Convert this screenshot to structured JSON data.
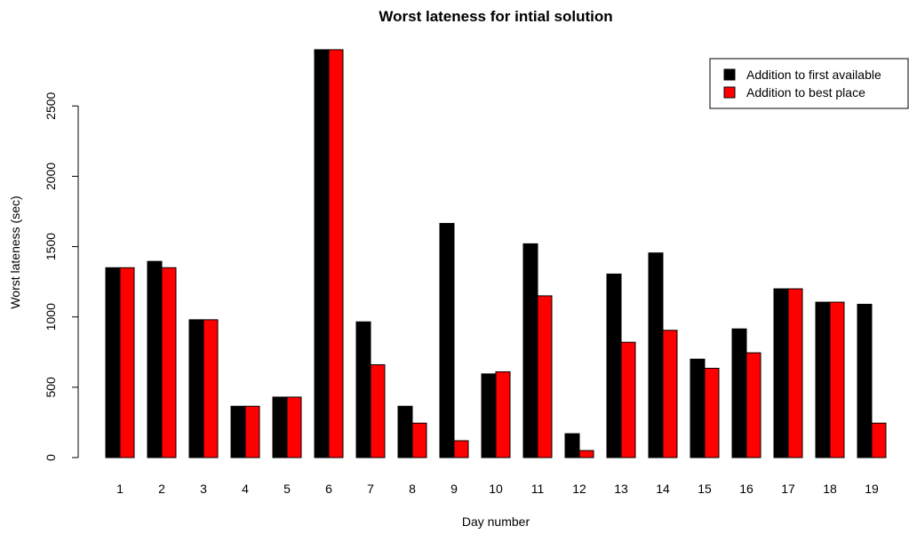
{
  "chart_data": {
    "type": "bar",
    "title": "Worst lateness for intial solution",
    "xlabel": "Day number",
    "ylabel": "Worst lateness (sec)",
    "ylim": [
      0,
      2900
    ],
    "yticks": [
      0,
      500,
      1000,
      1500,
      2000,
      2500
    ],
    "categories": [
      "1",
      "2",
      "3",
      "4",
      "5",
      "6",
      "7",
      "8",
      "9",
      "10",
      "11",
      "12",
      "13",
      "14",
      "15",
      "16",
      "17",
      "18",
      "19"
    ],
    "series": [
      {
        "name": "Addition to first available",
        "color": "#000000",
        "values": [
          1350,
          1395,
          980,
          365,
          430,
          2900,
          965,
          365,
          1665,
          595,
          1520,
          170,
          1305,
          1455,
          700,
          915,
          1200,
          1105,
          1090
        ]
      },
      {
        "name": "Addition to best place",
        "color": "#ff0000",
        "values": [
          1350,
          1350,
          980,
          365,
          430,
          2900,
          660,
          245,
          120,
          610,
          1150,
          50,
          820,
          905,
          635,
          745,
          1200,
          1105,
          245
        ]
      }
    ],
    "legend_position": "top-right",
    "grid": false
  }
}
